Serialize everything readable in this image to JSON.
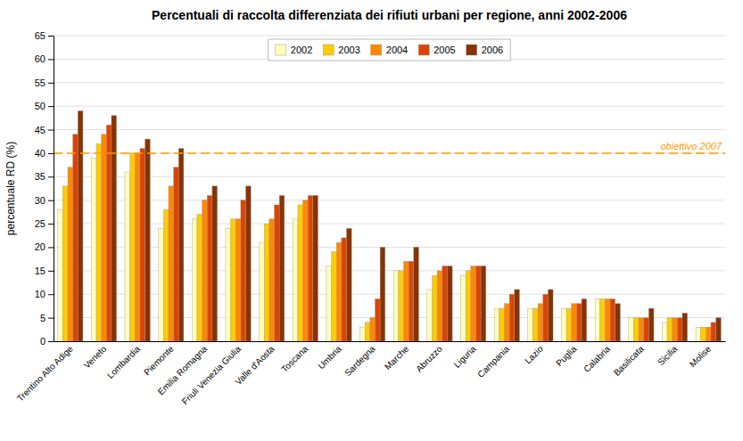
{
  "chart_data": {
    "type": "bar",
    "title": "Percentuali di raccolta differenziata dei rifiuti urbani per regione, anni 2002-2006",
    "y_label": "percentuale RD (%)",
    "categories": [
      "Trentino Alto Adige",
      "Veneto",
      "Lombardia",
      "Piemonte",
      "Emilia Romagna",
      "Friuli Venezia Giulia",
      "Valle d'Aosta",
      "Toscana",
      "Umbria",
      "Sardegna",
      "Marche",
      "Abruzzo",
      "Liguria",
      "Campania",
      "Lazio",
      "Puglia",
      "Calabria",
      "Basilicata",
      "Sicilia",
      "Molise"
    ],
    "series": [
      {
        "name": "2002",
        "color": "#FFFFBB",
        "values": [
          28,
          39,
          36,
          24,
          26,
          24,
          21,
          26,
          16,
          3,
          15,
          11,
          14,
          7,
          7,
          7,
          9,
          5,
          4,
          3
        ]
      },
      {
        "name": "2003",
        "color": "#FFCC00",
        "values": [
          33,
          42,
          40,
          28,
          27,
          26,
          25,
          29,
          19,
          4,
          15,
          14,
          15,
          7,
          7,
          7,
          9,
          5,
          5,
          3
        ]
      },
      {
        "name": "2004",
        "color": "#FF8800",
        "values": [
          37,
          44,
          40,
          33,
          30,
          26,
          26,
          30,
          21,
          5,
          17,
          15,
          16,
          8,
          8,
          8,
          9,
          5,
          5,
          3
        ]
      },
      {
        "name": "2005",
        "color": "#DD4400",
        "values": [
          44,
          46,
          41,
          37,
          31,
          30,
          29,
          31,
          22,
          9,
          17,
          16,
          16,
          10,
          10,
          8,
          9,
          5,
          5,
          4
        ]
      },
      {
        "name": "2006",
        "color": "#883300",
        "values": [
          49,
          48,
          43,
          41,
          33,
          33,
          31,
          31,
          24,
          20,
          20,
          16,
          16,
          11,
          11,
          9,
          8,
          7,
          6,
          5
        ]
      }
    ],
    "ylim": [
      0,
      65
    ],
    "yticks": [
      0,
      5,
      10,
      15,
      20,
      25,
      30,
      35,
      40,
      45,
      50,
      55,
      60,
      65
    ],
    "grid": true,
    "legend": "upper center",
    "annotations": [
      {
        "y": 40,
        "label": "obiettivo 2007",
        "color": "#FF9900",
        "line_style": "dashed"
      }
    ]
  }
}
